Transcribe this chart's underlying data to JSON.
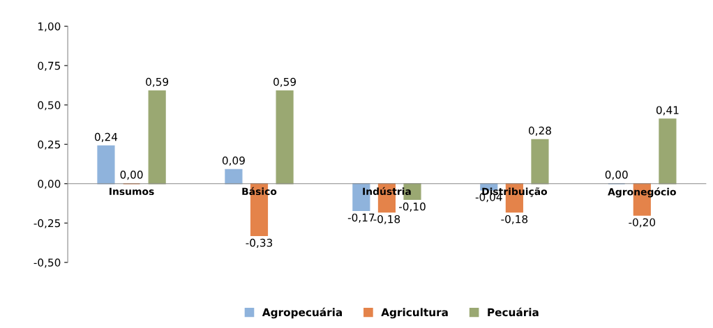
{
  "chart_data": {
    "type": "bar",
    "categories": [
      "Insumos",
      "Básico",
      "Indústria",
      "Distribuição",
      "Agronegócio"
    ],
    "series": [
      {
        "name": "Agropecuária",
        "color": "#8fb3dc",
        "values": [
          0.24,
          0.09,
          -0.17,
          -0.04,
          0.0
        ],
        "value_labels": [
          "0,24",
          "0,09",
          "-0,17",
          "-0,04",
          "0,00"
        ]
      },
      {
        "name": "Agricultura",
        "color": "#e4834a",
        "values": [
          0.0,
          -0.33,
          -0.18,
          -0.18,
          -0.2
        ],
        "value_labels": [
          "0,00",
          "-0,33",
          "-0,18",
          "-0,18",
          "-0,20"
        ]
      },
      {
        "name": "Pecuária",
        "color": "#9aa872",
        "values": [
          0.59,
          0.59,
          -0.1,
          0.28,
          0.41
        ],
        "value_labels": [
          "0,59",
          "0,59",
          "-0,10",
          "0,28",
          "0,41"
        ]
      }
    ],
    "ylim": [
      -0.5,
      1.0
    ],
    "yticks": [
      {
        "value": -0.5,
        "label": "-0,50"
      },
      {
        "value": -0.25,
        "label": "-0,25"
      },
      {
        "value": 0,
        "label": "0,00"
      },
      {
        "value": 0.25,
        "label": "0,25"
      },
      {
        "value": 0.5,
        "label": "0,50"
      },
      {
        "value": 0.75,
        "label": "0,75"
      },
      {
        "value": 1.0,
        "label": "1,00"
      }
    ],
    "grid": false,
    "legend": "bottom"
  }
}
